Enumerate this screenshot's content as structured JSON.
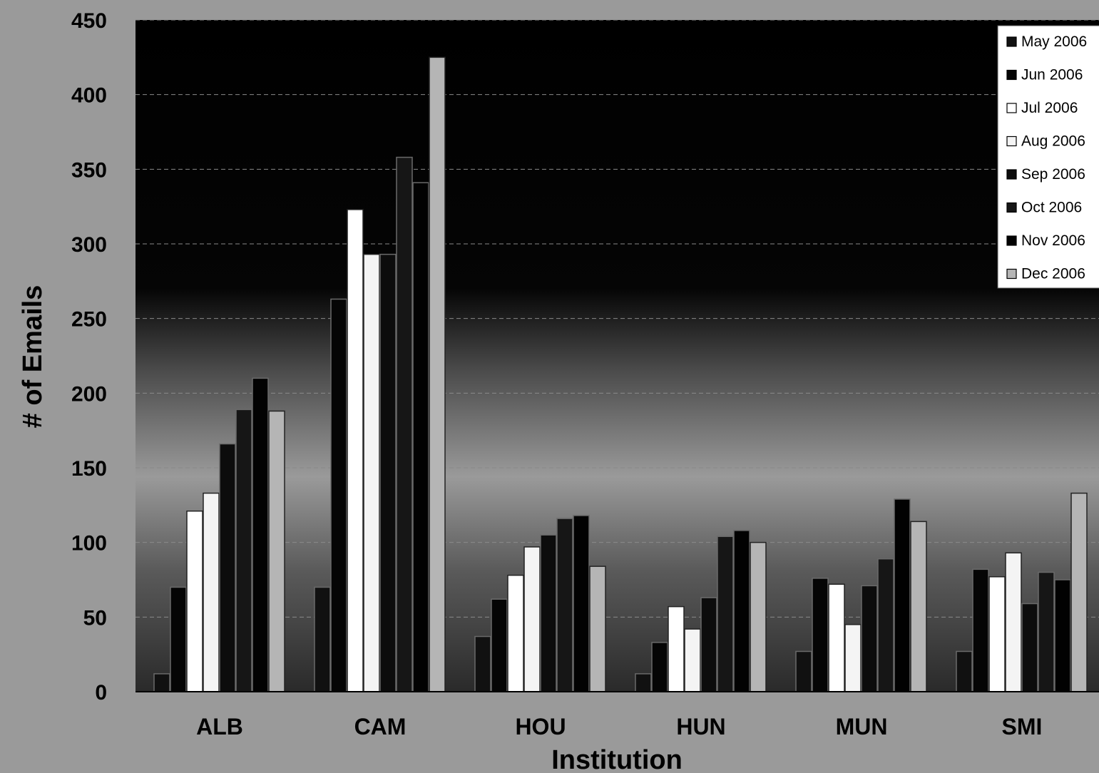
{
  "chart_data": {
    "type": "bar",
    "title": "",
    "xlabel": "Institution",
    "ylabel": "# of Emails",
    "ylim": [
      0,
      450
    ],
    "yticks": [
      0,
      50,
      100,
      150,
      200,
      250,
      300,
      350,
      400,
      450
    ],
    "grid": true,
    "legend_position": "top-right",
    "categories": [
      "ALB",
      "CAM",
      "HOU",
      "HUN",
      "MUN",
      "SMI"
    ],
    "series": [
      {
        "name": "May 2006",
        "color": "#111111",
        "values": [
          12,
          70,
          37,
          12,
          27,
          27
        ]
      },
      {
        "name": "Jun 2006",
        "color": "#050505",
        "values": [
          70,
          263,
          62,
          33,
          76,
          82
        ]
      },
      {
        "name": "Jul 2006",
        "color": "#ffffff",
        "values": [
          121,
          323,
          78,
          57,
          72,
          77
        ]
      },
      {
        "name": "Aug 2006",
        "color": "#f4f4f4",
        "values": [
          133,
          293,
          97,
          42,
          45,
          93
        ]
      },
      {
        "name": "Sep 2006",
        "color": "#0c0c0c",
        "values": [
          166,
          293,
          105,
          63,
          71,
          59
        ]
      },
      {
        "name": "Oct 2006",
        "color": "#161616",
        "values": [
          189,
          358,
          116,
          104,
          89,
          80
        ]
      },
      {
        "name": "Nov 2006",
        "color": "#020202",
        "values": [
          210,
          341,
          118,
          108,
          129,
          75
        ]
      },
      {
        "name": "Dec 2006",
        "color": "#b5b5b5",
        "values": [
          188,
          425,
          84,
          100,
          114,
          133
        ]
      }
    ]
  }
}
